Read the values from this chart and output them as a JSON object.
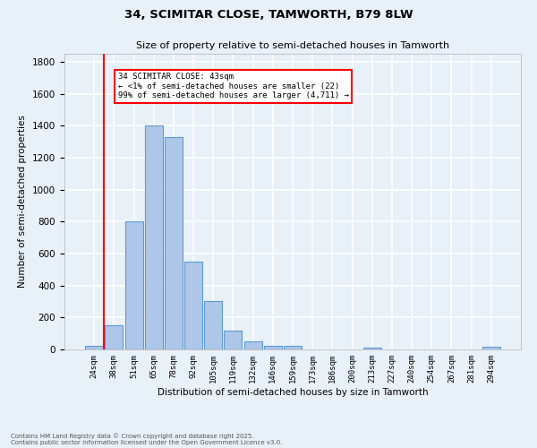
{
  "title1": "34, SCIMITAR CLOSE, TAMWORTH, B79 8LW",
  "title2": "Size of property relative to semi-detached houses in Tamworth",
  "xlabel": "Distribution of semi-detached houses by size in Tamworth",
  "ylabel": "Number of semi-detached properties",
  "footer1": "Contains HM Land Registry data © Crown copyright and database right 2025.",
  "footer2": "Contains public sector information licensed under the Open Government Licence v3.0.",
  "annotation_title": "34 SCIMITAR CLOSE: 43sqm",
  "annotation_line1": "← <1% of semi-detached houses are smaller (22)",
  "annotation_line2": "99% of semi-detached houses are larger (4,711) →",
  "bar_labels": [
    "24sqm",
    "38sqm",
    "51sqm",
    "65sqm",
    "78sqm",
    "92sqm",
    "105sqm",
    "119sqm",
    "132sqm",
    "146sqm",
    "159sqm",
    "173sqm",
    "186sqm",
    "200sqm",
    "213sqm",
    "227sqm",
    "240sqm",
    "254sqm",
    "267sqm",
    "281sqm",
    "294sqm"
  ],
  "bar_values": [
    22,
    150,
    800,
    1400,
    1330,
    550,
    300,
    120,
    50,
    25,
    25,
    0,
    0,
    0,
    10,
    0,
    0,
    0,
    0,
    0,
    15
  ],
  "bar_color": "#aec6e8",
  "bar_edge_color": "#5b9bd5",
  "background_color": "#e8f0f8",
  "grid_color": "#ffffff",
  "vline_color": "red",
  "annotation_box_color": "white",
  "annotation_box_edge": "red",
  "ylim": [
    0,
    1850
  ],
  "yticks": [
    0,
    200,
    400,
    600,
    800,
    1000,
    1200,
    1400,
    1600,
    1800
  ]
}
